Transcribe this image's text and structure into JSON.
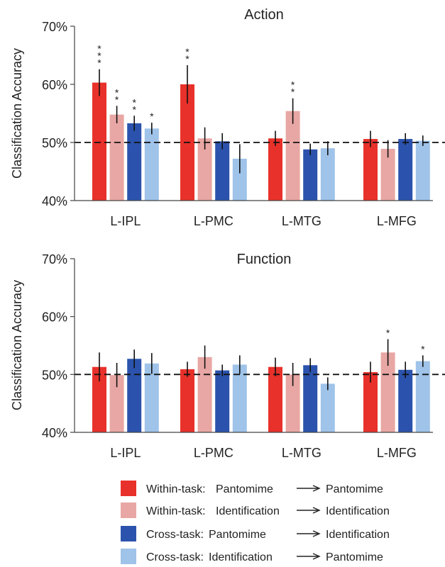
{
  "chart_data": [
    {
      "type": "bar",
      "title": "Action",
      "ylabel": "Classification Accuracy",
      "ylim": [
        40,
        70
      ],
      "yticks": [
        40,
        50,
        60,
        70
      ],
      "ytick_labels": [
        "40%",
        "50%",
        "60%",
        "70%"
      ],
      "chance_line": 50,
      "grid": false,
      "categories": [
        "L-IPL",
        "L-PMC",
        "L-MTG",
        "L-MFG"
      ],
      "series": [
        {
          "name": "Within-task: Pantomime → Pantomime",
          "color": "#e8312a",
          "values": [
            60.3,
            60.0,
            50.7,
            50.6
          ],
          "errors": [
            2.3,
            3.3,
            1.3,
            1.4
          ],
          "stars": [
            "***",
            "**",
            "",
            ""
          ]
        },
        {
          "name": "Within-task: Identification → Identification",
          "color": "#e8a7a4",
          "values": [
            54.8,
            50.7,
            55.4,
            48.9
          ],
          "errors": [
            1.5,
            1.9,
            2.2,
            1.5
          ],
          "stars": [
            "**",
            "",
            "**",
            ""
          ]
        },
        {
          "name": "Cross-task: Pantomime → Identification",
          "color": "#2b53ad",
          "values": [
            53.3,
            50.2,
            48.8,
            50.6
          ],
          "errors": [
            1.3,
            1.4,
            1.0,
            1.0
          ],
          "stars": [
            "**",
            "",
            "",
            ""
          ]
        },
        {
          "name": "Cross-task: Identification → Pantomime",
          "color": "#9fc3e9",
          "values": [
            52.4,
            47.2,
            49.0,
            50.3
          ],
          "errors": [
            1.0,
            2.5,
            1.2,
            0.9
          ],
          "stars": [
            "*",
            "",
            "",
            ""
          ]
        }
      ]
    },
    {
      "type": "bar",
      "title": "Function",
      "ylabel": "Classification Accuracy",
      "ylim": [
        40,
        70
      ],
      "yticks": [
        40,
        50,
        60,
        70
      ],
      "ytick_labels": [
        "40%",
        "50%",
        "60%",
        "70%"
      ],
      "chance_line": 50,
      "grid": false,
      "categories": [
        "L-IPL",
        "L-PMC",
        "L-MTG",
        "L-MFG"
      ],
      "series": [
        {
          "name": "Within-task: Pantomime → Pantomime",
          "color": "#e8312a",
          "values": [
            51.3,
            50.9,
            51.3,
            50.4
          ],
          "errors": [
            2.5,
            1.3,
            1.6,
            1.8
          ],
          "stars": [
            "",
            "",
            "",
            ""
          ]
        },
        {
          "name": "Within-task: Identification → Identification",
          "color": "#e8a7a4",
          "values": [
            49.9,
            53.0,
            50.0,
            53.8
          ],
          "errors": [
            2.1,
            2.0,
            2.0,
            2.3
          ],
          "stars": [
            "",
            "",
            "",
            "*"
          ]
        },
        {
          "name": "Cross-task: Pantomime → Identification",
          "color": "#2b53ad",
          "values": [
            52.7,
            50.7,
            51.6,
            50.8
          ],
          "errors": [
            1.6,
            1.0,
            1.2,
            1.4
          ],
          "stars": [
            "",
            "",
            "",
            ""
          ]
        },
        {
          "name": "Cross-task: Identification → Pantomime",
          "color": "#9fc3e9",
          "values": [
            51.9,
            51.7,
            48.4,
            52.3
          ],
          "errors": [
            1.8,
            1.6,
            1.1,
            1.0
          ],
          "stars": [
            "",
            "",
            "",
            "*"
          ]
        }
      ]
    }
  ],
  "legend": [
    {
      "color": "#e8312a",
      "task": "Within-task:",
      "from": "Pantomime",
      "to": "Pantomime"
    },
    {
      "color": "#e8a7a4",
      "task": "Within-task:",
      "from": "Identification",
      "to": "Identification"
    },
    {
      "color": "#2b53ad",
      "task": "Cross-task:",
      "from": "Pantomime",
      "to": "Identification"
    },
    {
      "color": "#9fc3e9",
      "task": "Cross-task:",
      "from": "Identification",
      "to": "Pantomime"
    }
  ]
}
